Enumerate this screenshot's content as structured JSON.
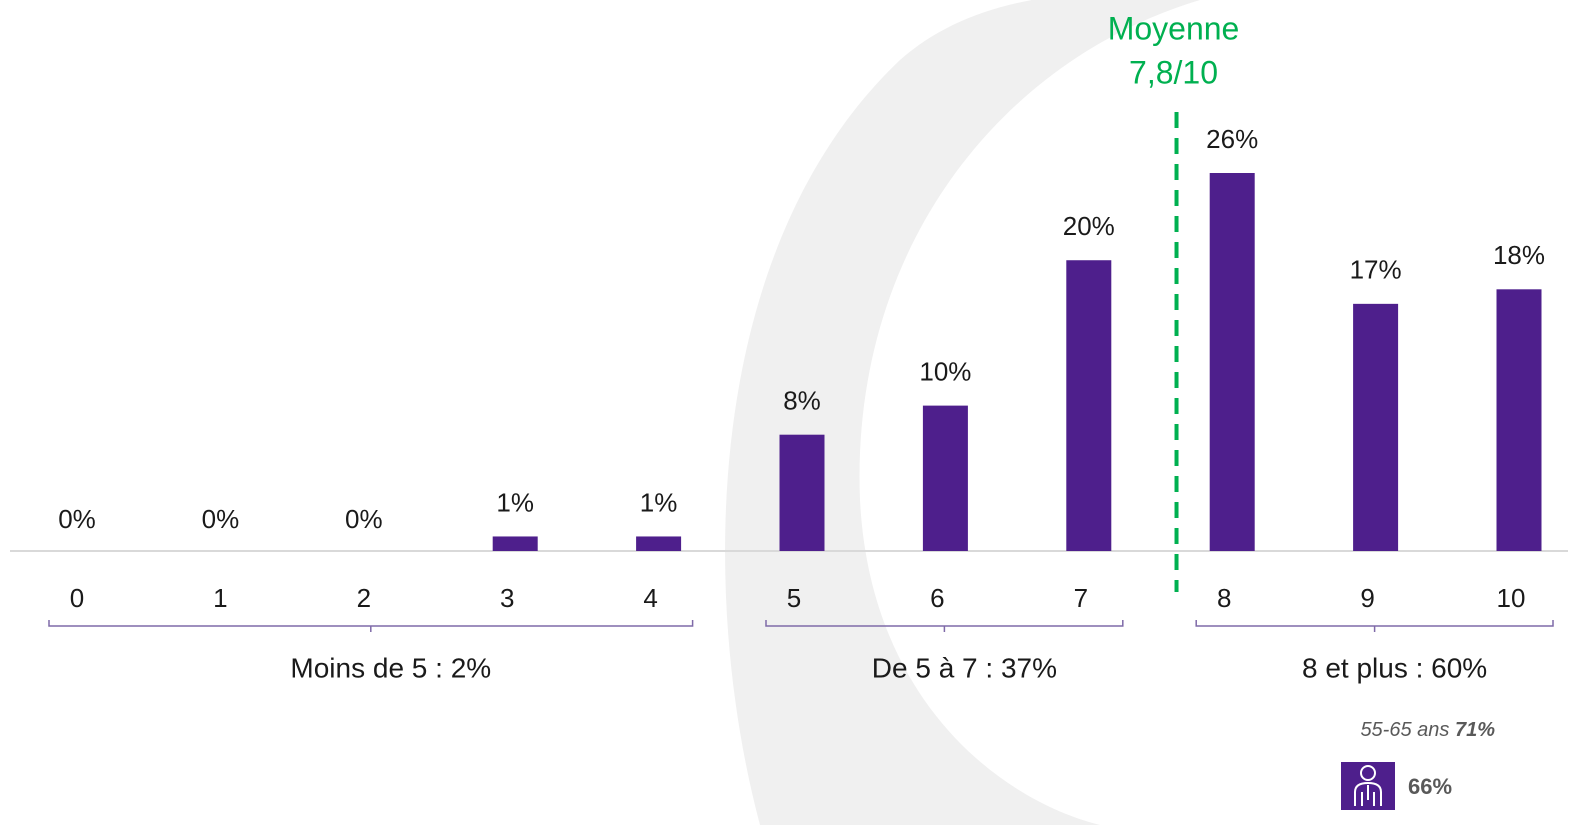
{
  "chart_data": {
    "type": "bar",
    "categories": [
      "0",
      "1",
      "2",
      "3",
      "4",
      "5",
      "6",
      "7",
      "8",
      "9",
      "10"
    ],
    "values": [
      0,
      0,
      0,
      1,
      1,
      8,
      10,
      20,
      26,
      17,
      18
    ],
    "value_labels": [
      "0%",
      "0%",
      "0%",
      "1%",
      "1%",
      "8%",
      "10%",
      "20%",
      "26%",
      "17%",
      "18%"
    ],
    "color": "#4e1f8c",
    "mean": {
      "value": 7.8,
      "title": "Moyenne",
      "label": "7,8/10",
      "color": "#00b050"
    },
    "groups": [
      {
        "label": "Moins de 5 : 2%",
        "span": [
          "0",
          "4"
        ]
      },
      {
        "label": "De 5 à 7 : 37%",
        "span": [
          "5",
          "7"
        ]
      },
      {
        "label": "8 et plus : 60%",
        "span": [
          "8",
          "10"
        ]
      }
    ],
    "notes": {
      "subgroup": "55-65 ans",
      "subgroup_value": "71%",
      "icon_value": "66%"
    }
  }
}
